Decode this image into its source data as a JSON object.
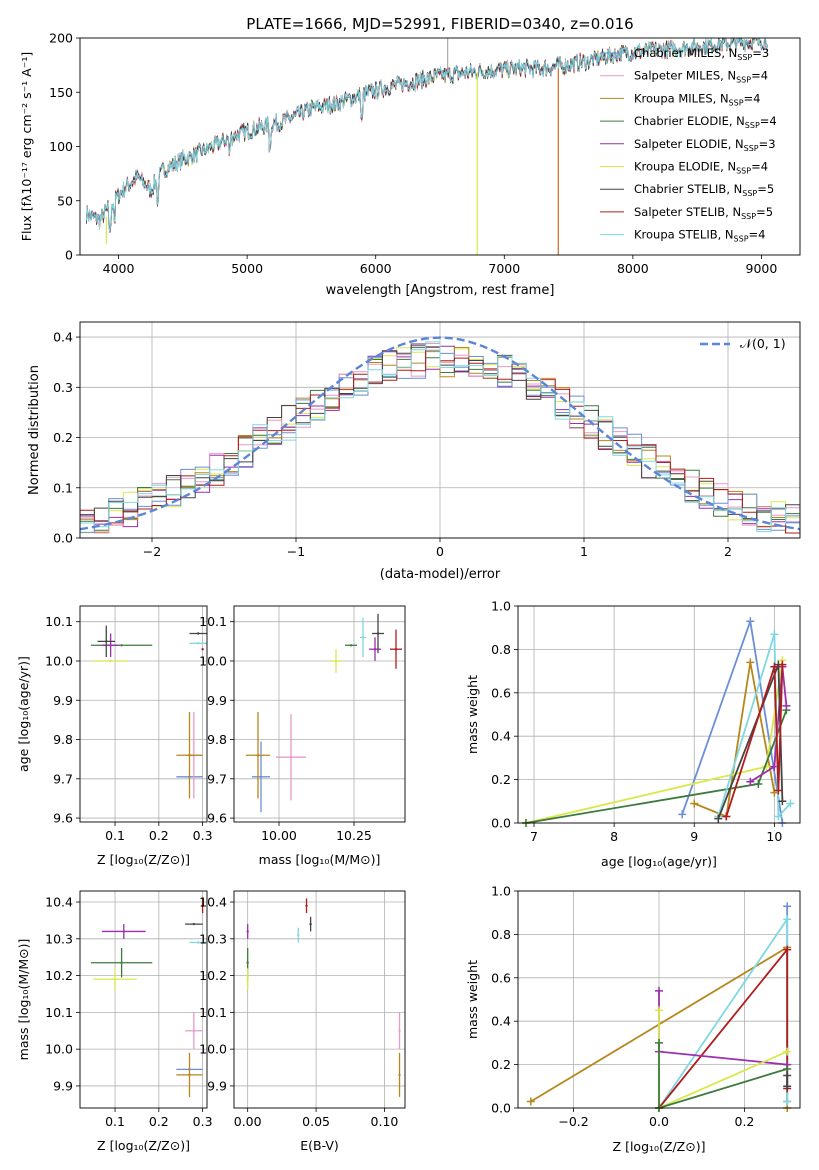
{
  "colors": {
    "Chabrier MILES": "#6b8fd6",
    "Salpeter MILES": "#e899c8",
    "Kroupa MILES": "#b5871c",
    "Chabrier ELODIE": "#3d7a3d",
    "Salpeter ELODIE": "#9b2fae",
    "Kroupa ELODIE": "#d9e84a",
    "Chabrier STELIB": "#444444",
    "Salpeter STELIB": "#b01c1c",
    "Kroupa STELIB": "#7fd8e0",
    "gauss": "#5b86d8"
  },
  "chart_data": [
    {
      "type": "line",
      "title": "PLATE=1666, MJD=52991, FIBERID=0340, z=0.016",
      "xlabel": "wavelength [Angstrom, rest frame]",
      "ylabel": "Flux [fλ10⁻¹⁷ erg cm⁻² s⁻¹ A⁻¹]",
      "xlim": [
        3700,
        9300
      ],
      "ylim": [
        0,
        200
      ],
      "xticks": [
        "4000",
        "5000",
        "6000",
        "7000",
        "8000",
        "9000"
      ],
      "yticks": [
        "0",
        "50",
        "100",
        "150",
        "200"
      ],
      "legend": [
        {
          "name": "Chabrier MILES",
          "nssp": "3"
        },
        {
          "name": "Salpeter MILES",
          "nssp": "4"
        },
        {
          "name": "Kroupa MILES",
          "nssp": "4"
        },
        {
          "name": "Chabrier ELODIE",
          "nssp": "4"
        },
        {
          "name": "Salpeter ELODIE",
          "nssp": "3"
        },
        {
          "name": "Kroupa ELODIE",
          "nssp": "4"
        },
        {
          "name": "Chabrier STELIB",
          "nssp": "5"
        },
        {
          "name": "Salpeter STELIB",
          "nssp": "5"
        },
        {
          "name": "Kroupa STELIB",
          "nssp": "4"
        }
      ],
      "legend_loc": "upper right",
      "continuum": [
        [
          3750,
          38
        ],
        [
          3850,
          32
        ],
        [
          3950,
          48
        ],
        [
          4050,
          62
        ],
        [
          4150,
          72
        ],
        [
          4250,
          60
        ],
        [
          4350,
          78
        ],
        [
          4500,
          88
        ],
        [
          4700,
          98
        ],
        [
          4900,
          110
        ],
        [
          5100,
          118
        ],
        [
          5300,
          124
        ],
        [
          5500,
          135
        ],
        [
          5700,
          140
        ],
        [
          5900,
          148
        ],
        [
          6100,
          155
        ],
        [
          6300,
          160
        ],
        [
          6500,
          165
        ],
        [
          6700,
          168
        ],
        [
          6900,
          170
        ],
        [
          7100,
          172
        ],
        [
          7300,
          172
        ],
        [
          7500,
          175
        ],
        [
          7700,
          180
        ],
        [
          7900,
          186
        ],
        [
          8100,
          188
        ],
        [
          8300,
          190
        ],
        [
          8500,
          192
        ],
        [
          8700,
          195
        ],
        [
          8900,
          196
        ],
        [
          9050,
          198
        ]
      ]
    },
    {
      "type": "bar",
      "xlabel": "(data-model)/error",
      "ylabel": "Normed distribution",
      "xlim": [
        -2.5,
        2.5
      ],
      "ylim": [
        0,
        0.43
      ],
      "xticks": [
        "−2",
        "−1",
        "0",
        "1",
        "2"
      ],
      "yticks": [
        "0.0",
        "0.1",
        "0.2",
        "0.3",
        "0.4"
      ],
      "legend": "𝒩(0, 1)",
      "gaussian": {
        "mu": 0,
        "sigma": 1
      }
    },
    {
      "type": "scatter",
      "xlabel": "Z [log₁₀(Z/Z⊙)]",
      "ylabel": "age  [log₁₀(age/yr)]",
      "xlim": [
        0.02,
        0.31
      ],
      "ylim": [
        9.59,
        10.14
      ],
      "xticks": [
        "0.1",
        "0.2",
        "0.3"
      ],
      "yticks": [
        "9.6",
        "9.7",
        "9.8",
        "9.9",
        "10.0",
        "10.1"
      ],
      "points": [
        {
          "model": "Chabrier MILES",
          "x": 0.27,
          "xe": 0.03,
          "y": 9.705,
          "ye": 0.0
        },
        {
          "model": "Salpeter MILES",
          "x": 0.28,
          "xe": 0.02,
          "y": 9.76,
          "ye": 0.11
        },
        {
          "model": "Kroupa MILES",
          "x": 0.27,
          "xe": 0.03,
          "y": 9.76,
          "ye": 0.11
        },
        {
          "model": "Chabrier ELODIE",
          "x": 0.115,
          "xe": 0.07,
          "y": 10.04,
          "ye": 0.0
        },
        {
          "model": "Salpeter ELODIE",
          "x": 0.09,
          "xe": 0.02,
          "y": 10.04,
          "ye": 0.03
        },
        {
          "model": "Kroupa ELODIE",
          "x": 0.09,
          "xe": 0.04,
          "y": 10.0,
          "ye": 0.0
        },
        {
          "model": "Chabrier STELIB",
          "x": 0.08,
          "xe": 0.02,
          "y": 10.05,
          "ye": 0.04
        },
        {
          "model": "Salpeter STELIB",
          "x": 0.3,
          "xe": 0.0,
          "y": 10.03,
          "ye": 0.0
        },
        {
          "model": "Kroupa STELIB",
          "x": 0.29,
          "xe": 0.02,
          "y": 10.045,
          "ye": 0.0
        },
        {
          "model": "Chabrier STELIB",
          "x": 0.29,
          "xe": 0.02,
          "y": 10.07,
          "ye": 0.0
        }
      ]
    },
    {
      "type": "scatter",
      "xlabel": "mass [log₁₀(M/M⊙)]",
      "xlim": [
        9.85,
        10.42
      ],
      "ylim": [
        9.59,
        10.14
      ],
      "xticks": [
        "10.00",
        "10.25"
      ],
      "yticks": [
        "9.6",
        "9.7",
        "9.8",
        "9.9",
        "10.0",
        "10.1"
      ],
      "points": [
        {
          "model": "Chabrier MILES",
          "x": 9.94,
          "xe": 0.03,
          "y": 9.705,
          "ye": 0.09
        },
        {
          "model": "Salpeter MILES",
          "x": 10.04,
          "xe": 0.05,
          "y": 9.755,
          "ye": 0.11
        },
        {
          "model": "Kroupa MILES",
          "x": 9.93,
          "xe": 0.04,
          "y": 9.76,
          "ye": 0.11
        },
        {
          "model": "Kroupa ELODIE",
          "x": 10.19,
          "xe": 0.02,
          "y": 10.0,
          "ye": 0.03
        },
        {
          "model": "Chabrier ELODIE",
          "x": 10.24,
          "xe": 0.02,
          "y": 10.04,
          "ye": 0.0
        },
        {
          "model": "Salpeter ELODIE",
          "x": 10.32,
          "xe": 0.02,
          "y": 10.03,
          "ye": 0.03
        },
        {
          "model": "Kroupa STELIB",
          "x": 10.28,
          "xe": 0.01,
          "y": 10.06,
          "ye": 0.05
        },
        {
          "model": "Chabrier STELIB",
          "x": 10.33,
          "xe": 0.02,
          "y": 10.07,
          "ye": 0.05
        },
        {
          "model": "Salpeter STELIB",
          "x": 10.39,
          "xe": 0.02,
          "y": 10.03,
          "ye": 0.05
        }
      ]
    },
    {
      "type": "line",
      "xlabel": "age  [log₁₀(age/yr)]",
      "ylabel": "mass weight",
      "xlim": [
        6.8,
        10.32
      ],
      "ylim": [
        0,
        1.0
      ],
      "xticks": [
        "7",
        "8",
        "9",
        "10"
      ],
      "yticks": [
        "0.0",
        "0.2",
        "0.4",
        "0.6",
        "0.8",
        "1.0"
      ],
      "series": [
        {
          "model": "Chabrier MILES",
          "x": [
            8.85,
            9.7,
            10.1
          ],
          "y": [
            0.04,
            0.93,
            0.0
          ]
        },
        {
          "model": "Kroupa MILES",
          "x": [
            9.0,
            9.4,
            9.7,
            10.0
          ],
          "y": [
            0.09,
            0.03,
            0.74,
            0.14
          ]
        },
        {
          "model": "Kroupa ELODIE",
          "x": [
            6.9,
            9.9,
            10.1
          ],
          "y": [
            0.0,
            0.26,
            0.75
          ]
        },
        {
          "model": "Chabrier ELODIE",
          "x": [
            6.9,
            9.8,
            10.15
          ],
          "y": [
            0.0,
            0.18,
            0.52
          ]
        },
        {
          "model": "Salpeter ELODIE",
          "x": [
            9.7,
            10.0,
            10.1,
            10.15
          ],
          "y": [
            0.19,
            0.26,
            0.72,
            0.54
          ]
        },
        {
          "model": "Kroupa STELIB",
          "x": [
            9.3,
            10.0,
            10.05,
            10.2
          ],
          "y": [
            0.03,
            0.87,
            0.03,
            0.09
          ]
        },
        {
          "model": "Chabrier STELIB",
          "x": [
            9.3,
            10.05,
            10.1
          ],
          "y": [
            0.02,
            0.73,
            0.1
          ]
        },
        {
          "model": "Salpeter STELIB",
          "x": [
            9.4,
            10.0,
            10.05,
            10.1
          ],
          "y": [
            0.03,
            0.72,
            0.15,
            0.73
          ]
        }
      ]
    },
    {
      "type": "scatter",
      "xlabel": "Z [log₁₀(Z/Z⊙)]",
      "ylabel": "mass [log₁₀(M/M⊙)]",
      "xlim": [
        0.02,
        0.31
      ],
      "ylim": [
        9.84,
        10.43
      ],
      "xticks": [
        "0.1",
        "0.2",
        "0.3"
      ],
      "yticks": [
        "9.9",
        "10.0",
        "10.1",
        "10.2",
        "10.3",
        "10.4"
      ],
      "points": [
        {
          "model": "Chabrier MILES",
          "x": 0.27,
          "xe": 0.03,
          "y": 9.945,
          "ye": 0.0
        },
        {
          "model": "Kroupa MILES",
          "x": 0.27,
          "xe": 0.03,
          "y": 9.93,
          "ye": 0.06
        },
        {
          "model": "Salpeter MILES",
          "x": 0.28,
          "xe": 0.02,
          "y": 10.05,
          "ye": 0.05
        },
        {
          "model": "Chabrier ELODIE",
          "x": 0.115,
          "xe": 0.07,
          "y": 10.235,
          "ye": 0.04
        },
        {
          "model": "Salpeter ELODIE",
          "x": 0.12,
          "xe": 0.05,
          "y": 10.32,
          "ye": 0.02
        },
        {
          "model": "Kroupa ELODIE",
          "x": 0.1,
          "xe": 0.05,
          "y": 10.19,
          "ye": 0.03
        },
        {
          "model": "Chabrier STELIB",
          "x": 0.28,
          "xe": 0.02,
          "y": 10.34,
          "ye": 0.0
        },
        {
          "model": "Salpeter STELIB",
          "x": 0.3,
          "xe": 0.0,
          "y": 10.39,
          "ye": 0.02
        },
        {
          "model": "Kroupa STELIB",
          "x": 0.29,
          "xe": 0.02,
          "y": 10.29,
          "ye": 0.0
        }
      ]
    },
    {
      "type": "scatter",
      "xlabel": "E(B-V)",
      "xlim": [
        -0.01,
        0.115
      ],
      "ylim": [
        9.84,
        10.43
      ],
      "xticks": [
        "0.00",
        "0.05",
        "0.10"
      ],
      "yticks": [
        "9.9",
        "10.0",
        "10.1",
        "10.2",
        "10.3",
        "10.4"
      ],
      "points": [
        {
          "model": "Salpeter ELODIE",
          "x": 0.0,
          "y": 10.32,
          "ye": 0.02
        },
        {
          "model": "Chabrier ELODIE",
          "x": 0.0,
          "y": 10.235,
          "ye": 0.04
        },
        {
          "model": "Kroupa ELODIE",
          "x": 0.0,
          "y": 10.19,
          "ye": 0.03
        },
        {
          "model": "Kroupa STELIB",
          "x": 0.037,
          "y": 10.31,
          "ye": 0.02
        },
        {
          "model": "Chabrier STELIB",
          "x": 0.046,
          "y": 10.34,
          "ye": 0.02
        },
        {
          "model": "Salpeter STELIB",
          "x": 0.043,
          "y": 10.39,
          "ye": 0.02
        },
        {
          "model": "Salpeter MILES",
          "x": 0.111,
          "y": 10.05,
          "ye": 0.05
        },
        {
          "model": "Kroupa MILES",
          "x": 0.111,
          "y": 9.93,
          "ye": 0.06
        }
      ]
    },
    {
      "type": "line",
      "xlabel": "Z [log₁₀(Z/Z⊙)]",
      "ylabel": "mass weight",
      "xlim": [
        -0.33,
        0.33
      ],
      "ylim": [
        0,
        1.0
      ],
      "xticks": [
        "−0.2",
        "0.0",
        "0.2"
      ],
      "yticks": [
        "0.0",
        "0.2",
        "0.4",
        "0.6",
        "0.8",
        "1.0"
      ],
      "series": [
        {
          "model": "Kroupa MILES",
          "x": [
            -0.3,
            0.3,
            0.3
          ],
          "y": [
            0.03,
            0.74,
            0.0
          ]
        },
        {
          "model": "Chabrier MILES",
          "x": [
            0.3,
            0.3
          ],
          "y": [
            0.93,
            0.03
          ]
        },
        {
          "model": "Kroupa STELIB",
          "x": [
            0.0,
            0.3,
            0.3
          ],
          "y": [
            0.0,
            0.87,
            0.03
          ]
        },
        {
          "model": "Salpeter STELIB",
          "x": [
            0.0,
            0.3,
            0.3
          ],
          "y": [
            0.0,
            0.73,
            0.09
          ]
        },
        {
          "model": "Salpeter ELODIE",
          "x": [
            0.0,
            0.0,
            0.3
          ],
          "y": [
            0.54,
            0.26,
            0.2
          ]
        },
        {
          "model": "Kroupa ELODIE",
          "x": [
            0.0,
            0.0,
            0.3
          ],
          "y": [
            0.45,
            0.0,
            0.26
          ]
        },
        {
          "model": "Chabrier ELODIE",
          "x": [
            0.0,
            0.0,
            0.3
          ],
          "y": [
            0.3,
            0.0,
            0.18
          ]
        },
        {
          "model": "Chabrier STELIB",
          "x": [
            0.3,
            0.3
          ],
          "y": [
            0.15,
            0.1
          ]
        }
      ]
    }
  ]
}
